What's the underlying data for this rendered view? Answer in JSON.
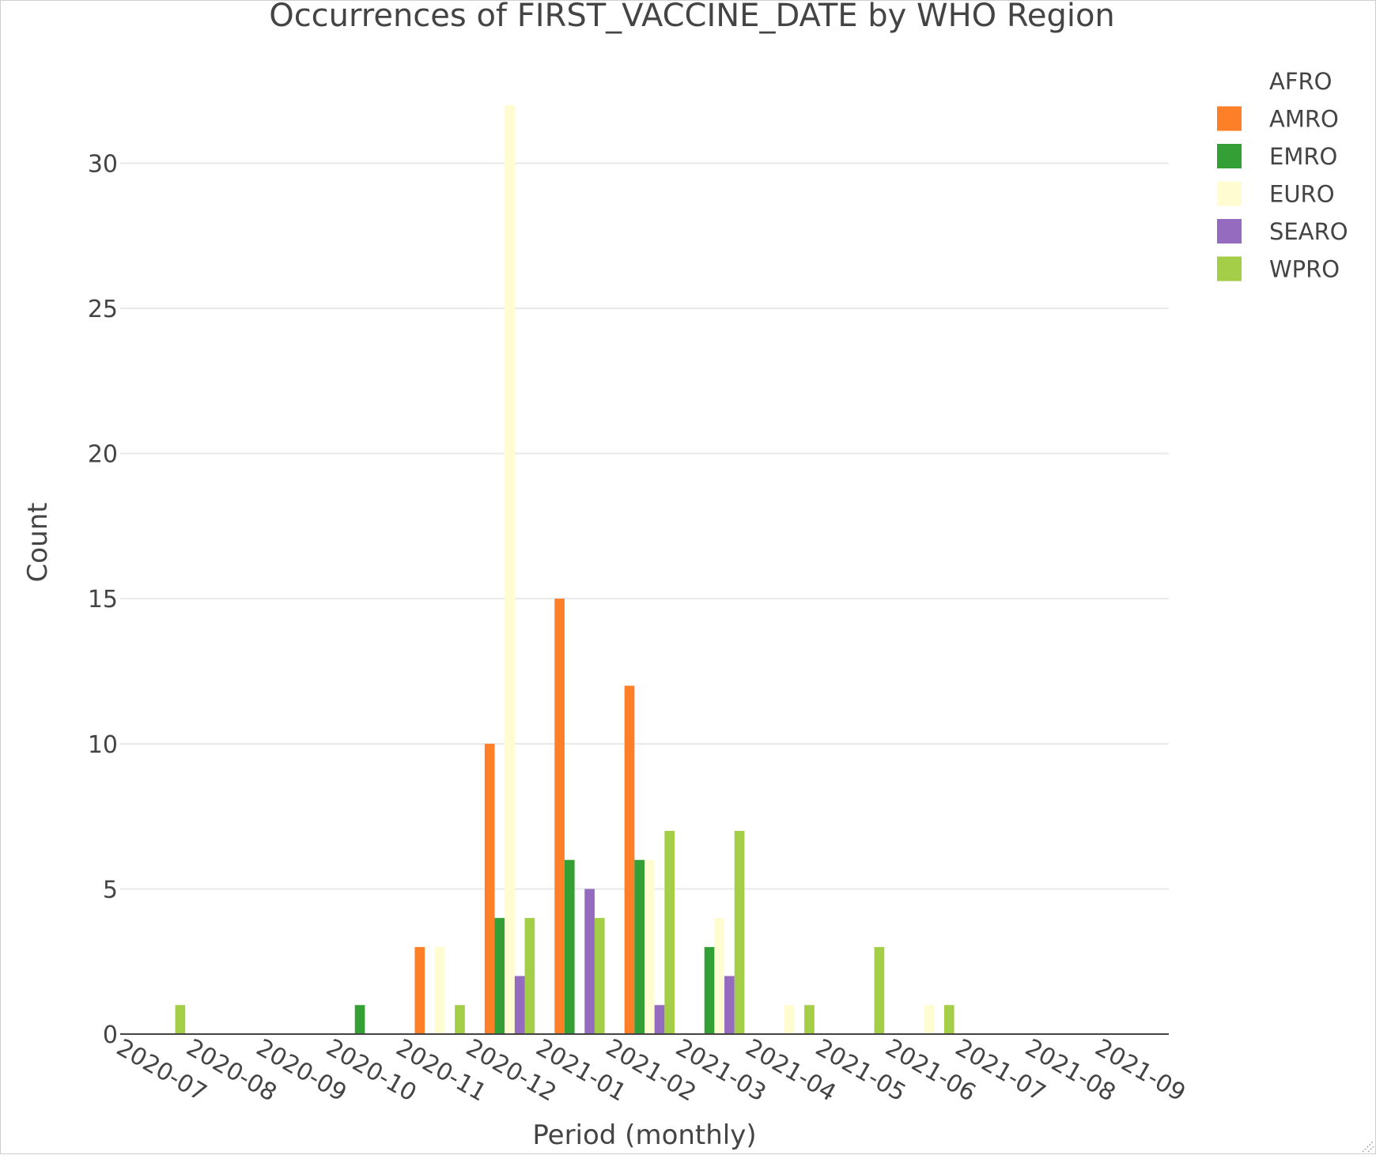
{
  "chart_data": {
    "type": "bar",
    "title": "Occurrences of FIRST_VACCINE_DATE by WHO Region",
    "xlabel": "Period (monthly)",
    "ylabel": "Count",
    "ylim": [
      0,
      32.6
    ],
    "yticks": [
      0,
      5,
      10,
      15,
      20,
      25,
      30
    ],
    "grid": true,
    "legend_position": "top-right",
    "categories": [
      "2020-07",
      "2020-08",
      "2020-09",
      "2020-10",
      "2020-11",
      "2020-12",
      "2021-01",
      "2021-02",
      "2021-03",
      "2021-04",
      "2021-05",
      "2021-06",
      "2021-07",
      "2021-08",
      "2021-09"
    ],
    "series": [
      {
        "name": "AFRO",
        "color": "#ffffff",
        "values": [
          0,
          0,
          0,
          0,
          0,
          0,
          0,
          0,
          0,
          0,
          0,
          0,
          0,
          0,
          0
        ]
      },
      {
        "name": "AMRO",
        "color": "#fd7f28",
        "values": [
          0,
          0,
          0,
          0,
          3,
          10,
          15,
          12,
          0,
          0,
          0,
          0,
          0,
          0,
          0
        ]
      },
      {
        "name": "EMRO",
        "color": "#339f34",
        "values": [
          0,
          0,
          0,
          1,
          0,
          4,
          6,
          6,
          3,
          0,
          0,
          0,
          0,
          0,
          0
        ]
      },
      {
        "name": "EURO",
        "color": "#fffcd2",
        "values": [
          0,
          0,
          0,
          0,
          3,
          32,
          0,
          6,
          4,
          1,
          0,
          1,
          0,
          0,
          0
        ]
      },
      {
        "name": "SEARO",
        "color": "#946bbe",
        "values": [
          0,
          0,
          0,
          0,
          0,
          2,
          5,
          1,
          2,
          0,
          0,
          0,
          0,
          0,
          0
        ]
      },
      {
        "name": "WPRO",
        "color": "#a4cd48",
        "values": [
          1,
          0,
          0,
          0,
          1,
          4,
          4,
          7,
          7,
          1,
          3,
          1,
          0,
          0,
          0
        ]
      }
    ]
  }
}
